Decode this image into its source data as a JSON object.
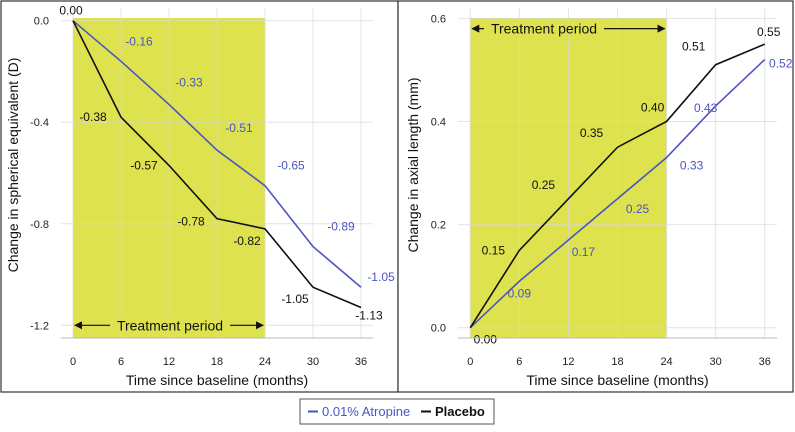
{
  "colors": {
    "atropine": "#4a55c0",
    "placebo": "#111111",
    "treatment_band": "#dde24e",
    "grid": "#d9d9d9",
    "frame": "#333333"
  },
  "legend": {
    "atropine_label": "0.01% Atropine",
    "placebo_label": "Placebo"
  },
  "chart_data": [
    {
      "type": "line",
      "title": "",
      "xlabel": "Time since baseline (months)",
      "ylabel": "Change in spherical equivalent (D)",
      "xlim": [
        -1.5,
        37.5
      ],
      "ylim": [
        -1.25,
        0.05
      ],
      "xticks": [
        0,
        6,
        12,
        18,
        24,
        30,
        36
      ],
      "xtick_labels": [
        "0",
        "6",
        "12",
        "18",
        "24",
        "30",
        "36"
      ],
      "yticks": [
        0.0,
        -0.4,
        -0.8,
        -1.2
      ],
      "ytick_labels": [
        "0.0",
        "-0.4",
        "-0.8",
        "-1.2"
      ],
      "treatment_period": {
        "label": "Treatment period",
        "x_start": 0,
        "x_end": 24,
        "arrow_y": -1.2
      },
      "series": [
        {
          "name": "0.01% Atropine",
          "color_key": "atropine",
          "x": [
            0,
            6,
            12,
            18,
            24,
            30,
            36
          ],
          "values": [
            0.0,
            -0.16,
            -0.33,
            -0.51,
            -0.65,
            -0.89,
            -1.05
          ],
          "labels": [
            {
              "x": 6,
              "y": -0.16,
              "text": "-0.16"
            },
            {
              "x": 12,
              "y": -0.33,
              "text": "-0.33"
            },
            {
              "x": 18,
              "y": -0.51,
              "text": "-0.51"
            },
            {
              "x": 24,
              "y": -0.65,
              "text": "-0.65"
            },
            {
              "x": 30,
              "y": -0.89,
              "text": "-0.89"
            },
            {
              "x": 36,
              "y": -1.05,
              "text": "-1.05"
            }
          ]
        },
        {
          "name": "Placebo",
          "color_key": "placebo",
          "x": [
            0,
            6,
            12,
            18,
            24,
            30,
            36
          ],
          "values": [
            0.0,
            -0.38,
            -0.57,
            -0.78,
            -0.82,
            -1.05,
            -1.13
          ],
          "labels": [
            {
              "x": 0,
              "y": 0.0,
              "text": "0.00"
            },
            {
              "x": 6,
              "y": -0.38,
              "text": "-0.38"
            },
            {
              "x": 12,
              "y": -0.57,
              "text": "-0.57"
            },
            {
              "x": 18,
              "y": -0.78,
              "text": "-0.78"
            },
            {
              "x": 24,
              "y": -0.82,
              "text": "-0.82"
            },
            {
              "x": 30,
              "y": -1.05,
              "text": "-1.05"
            },
            {
              "x": 36,
              "y": -1.13,
              "text": "-1.13"
            }
          ]
        }
      ]
    },
    {
      "type": "line",
      "title": "",
      "xlabel": "Time since baseline (months)",
      "ylabel": "Change in axial length (mm)",
      "xlim": [
        -1.5,
        37.5
      ],
      "ylim": [
        -0.02,
        0.62
      ],
      "xticks": [
        0,
        6,
        12,
        18,
        24,
        30,
        36
      ],
      "xtick_labels": [
        "0",
        "6",
        "12",
        "18",
        "24",
        "30",
        "36"
      ],
      "yticks": [
        0.0,
        0.2,
        0.4,
        0.6
      ],
      "ytick_labels": [
        "0.0",
        "0.2",
        "0.4",
        "0.6"
      ],
      "treatment_period": {
        "label": "Treatment period",
        "x_start": 0,
        "x_end": 24,
        "arrow_y": 0.58
      },
      "series": [
        {
          "name": "0.01% Atropine",
          "color_key": "atropine",
          "x": [
            0,
            6,
            12,
            18,
            24,
            30,
            36
          ],
          "values": [
            0.0,
            0.09,
            0.17,
            0.25,
            0.33,
            0.43,
            0.52
          ],
          "labels": [
            {
              "x": 6,
              "y": 0.09,
              "text": "0.09"
            },
            {
              "x": 12,
              "y": 0.17,
              "text": "0.17"
            },
            {
              "x": 18,
              "y": 0.25,
              "text": "0.25"
            },
            {
              "x": 24,
              "y": 0.33,
              "text": "0.33"
            },
            {
              "x": 30,
              "y": 0.43,
              "text": "0.43"
            },
            {
              "x": 36,
              "y": 0.52,
              "text": "0.52"
            }
          ]
        },
        {
          "name": "Placebo",
          "color_key": "placebo",
          "x": [
            0,
            6,
            12,
            18,
            24,
            30,
            36
          ],
          "values": [
            0.0,
            0.15,
            0.25,
            0.35,
            0.4,
            0.51,
            0.55
          ],
          "labels": [
            {
              "x": 0,
              "y": 0.0,
              "text": "0.00"
            },
            {
              "x": 6,
              "y": 0.15,
              "text": "0.15"
            },
            {
              "x": 12,
              "y": 0.25,
              "text": "0.25"
            },
            {
              "x": 18,
              "y": 0.35,
              "text": "0.35"
            },
            {
              "x": 24,
              "y": 0.4,
              "text": "0.40"
            },
            {
              "x": 30,
              "y": 0.51,
              "text": "0.51"
            },
            {
              "x": 36,
              "y": 0.55,
              "text": "0.55"
            }
          ]
        }
      ]
    }
  ]
}
